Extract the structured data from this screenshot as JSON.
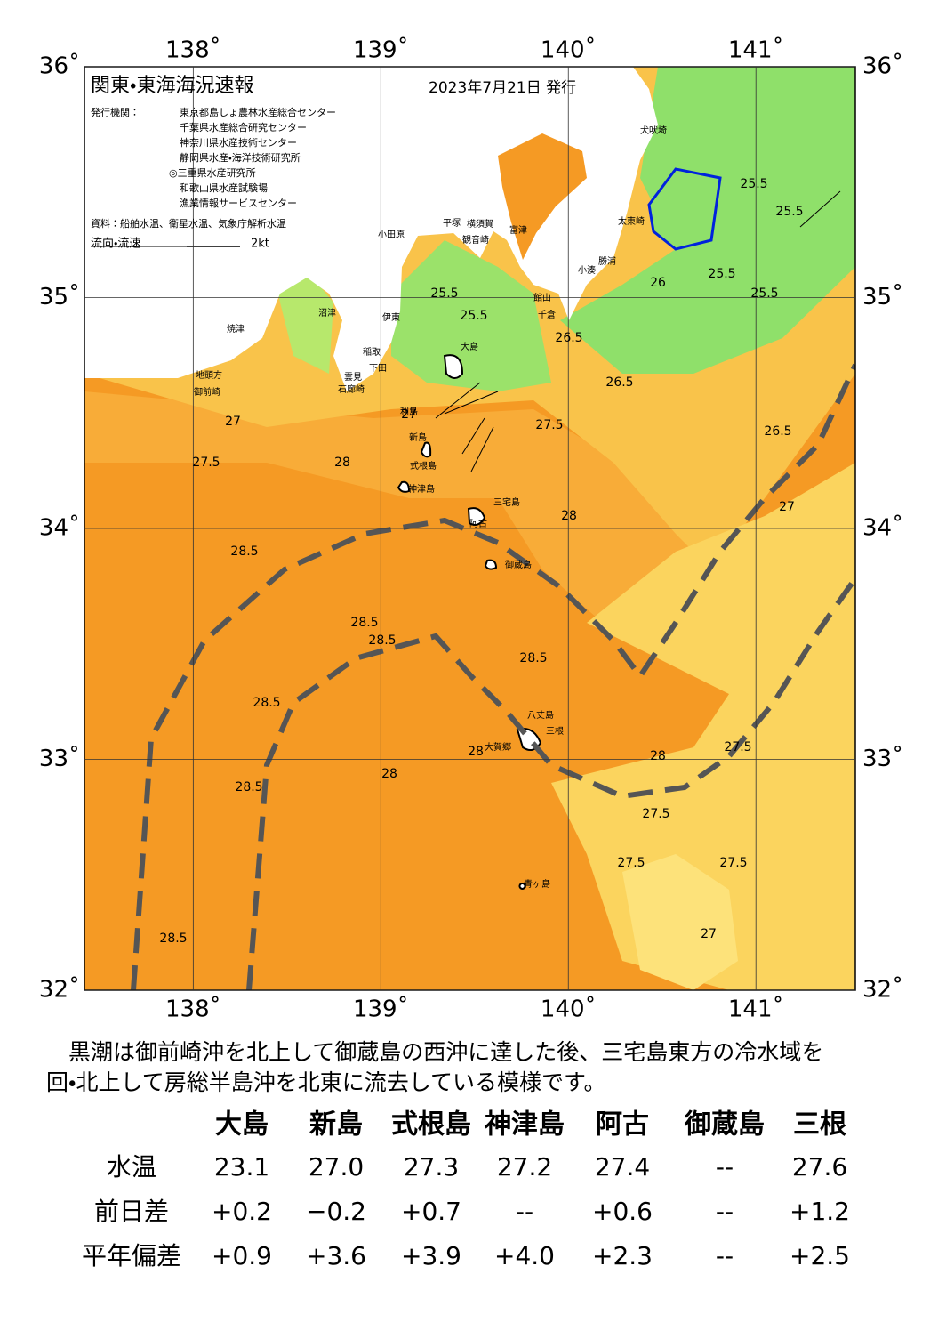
{
  "header": {
    "title": "関東・東海海況速報",
    "date": "2023年7月21日 発行",
    "issuer_label": "発行機関：",
    "issuers": [
      "東京都島しょ農林水産総合センター",
      "千葉県水産総合研究センター",
      "神奈川県水産技術センター",
      "静岡県水産・海洋技術研究所",
      "◎三重県水産研究所",
      "和歌山県水産試験場",
      "漁業情報サービスセンター"
    ],
    "source": "資料：船舶水温、衛星水温、気象庁解析水温",
    "flow_label": "流向・流速",
    "flow_scale": "2kt"
  },
  "map": {
    "lonlim": [
      137.42,
      141.53
    ],
    "latlim": [
      32,
      36
    ],
    "lon_ticks": [
      {
        "value": 138,
        "label": "138˚"
      },
      {
        "value": 139,
        "label": "139˚"
      },
      {
        "value": 140,
        "label": "140˚"
      },
      {
        "value": 141,
        "label": "141˚"
      }
    ],
    "lat_ticks": [
      {
        "value": 36,
        "label": "36˚"
      },
      {
        "value": 35,
        "label": "35˚"
      },
      {
        "value": 34,
        "label": "34˚"
      },
      {
        "value": 33,
        "label": "33˚"
      },
      {
        "value": 32,
        "label": "32˚"
      }
    ],
    "places": [
      "沼津",
      "焼津",
      "伊東",
      "稲取",
      "下田",
      "雲見",
      "石廊崎",
      "地頭方",
      "御前崎",
      "小田原",
      "平塚",
      "横須賀",
      "観音崎",
      "富津",
      "館山",
      "千倉",
      "小湊",
      "勝浦",
      "太東崎",
      "犬吠埼",
      "大島",
      "利島",
      "新島",
      "式根島",
      "神津島",
      "三宅島",
      "阿古",
      "御蔵島",
      "八丈島",
      "三根",
      "大賀郷",
      "青ヶ島"
    ],
    "contour_labels": [
      "25.5",
      "25.5",
      "25.5",
      "25.5",
      "25.5",
      "25.5",
      "26",
      "26.5",
      "26.5",
      "27",
      "27",
      "27.5",
      "27.5",
      "28",
      "28",
      "28.5",
      "28.5",
      "28.5",
      "28.5",
      "28.5",
      "28",
      "27.5",
      "27.5",
      "27.5",
      "27",
      "28.5",
      "28",
      "28.5",
      "27",
      "26.5",
      "27.5",
      "28"
    ]
  },
  "paragraph": [
    "　黒潮は御前崎沖を北上して御蔵島の西沖に達した後、三宅島東方の冷水域を",
    "回・北上して房総半島沖を北東に流去している模様です。"
  ],
  "table": {
    "columns": [
      "大島",
      "新島",
      "式根島",
      "神津島",
      "阿古",
      "御蔵島",
      "三根"
    ],
    "rows": [
      [
        "水温",
        "23.1",
        "27.0",
        "27.3",
        "27.2",
        "27.4",
        "--",
        "27.6"
      ],
      [
        "前日差",
        "+0.2",
        "−0.2",
        "+0.7",
        "--",
        "+0.6",
        "--",
        "+1.2"
      ],
      [
        "平年偏差",
        "+0.9",
        "+3.6",
        "+3.9",
        "+4.0",
        "+2.3",
        "--",
        "+2.5"
      ]
    ]
  }
}
